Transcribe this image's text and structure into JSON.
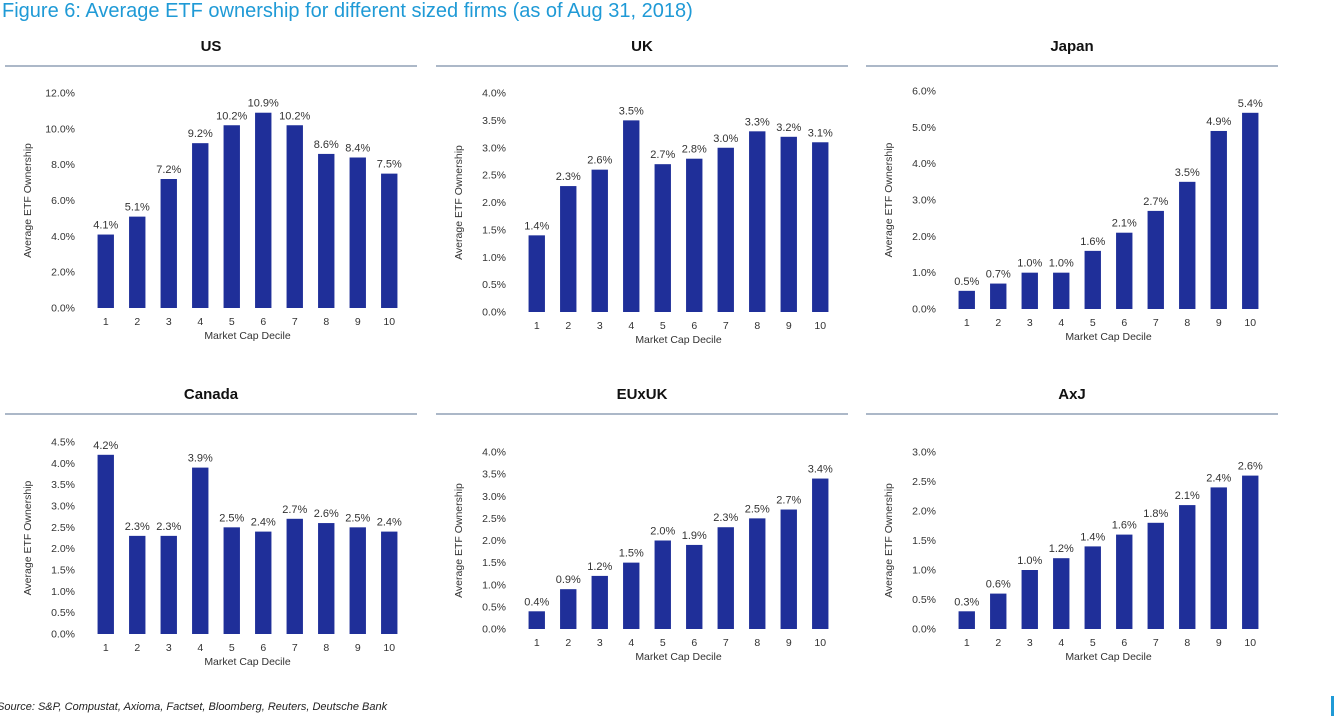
{
  "figure_title": "Figure 6: Average ETF ownership for different sized firms (as of Aug 31, 2018)",
  "source": "Source: S&P, Compustat, Axioma, Factset, Bloomberg, Reuters, Deutsche Bank",
  "colors": {
    "bar": "#1f2f99",
    "rule": "#7a8ea6",
    "title": "#1f9ad6"
  },
  "chart_data": [
    {
      "type": "bar",
      "title": "US",
      "xlabel": "Market Cap Decile",
      "ylabel": "Average ETF Ownership",
      "categories": [
        "1",
        "2",
        "3",
        "4",
        "5",
        "6",
        "7",
        "8",
        "9",
        "10"
      ],
      "values": [
        4.1,
        5.1,
        7.2,
        9.2,
        10.2,
        10.9,
        10.2,
        8.6,
        8.4,
        7.5
      ],
      "value_labels": [
        "4.1%",
        "5.1%",
        "7.2%",
        "9.2%",
        "10.2%",
        "10.9%",
        "10.2%",
        "8.6%",
        "8.4%",
        "7.5%"
      ],
      "yticks": [
        0,
        2,
        4,
        6,
        8,
        10,
        12
      ],
      "ytick_labels": [
        "0.0%",
        "2.0%",
        "4.0%",
        "6.0%",
        "8.0%",
        "10.0%",
        "12.0%"
      ],
      "ylim": [
        0,
        12
      ]
    },
    {
      "type": "bar",
      "title": "UK",
      "xlabel": "Market Cap Decile",
      "ylabel": "Average ETF Ownership",
      "categories": [
        "1",
        "2",
        "3",
        "4",
        "5",
        "6",
        "7",
        "8",
        "9",
        "10"
      ],
      "values": [
        1.4,
        2.3,
        2.6,
        3.5,
        2.7,
        2.8,
        3.0,
        3.3,
        3.2,
        3.1
      ],
      "value_labels": [
        "1.4%",
        "2.3%",
        "2.6%",
        "3.5%",
        "2.7%",
        "2.8%",
        "3.0%",
        "3.3%",
        "3.2%",
        "3.1%"
      ],
      "yticks": [
        0,
        0.5,
        1,
        1.5,
        2,
        2.5,
        3,
        3.5,
        4
      ],
      "ytick_labels": [
        "0.0%",
        "0.5%",
        "1.0%",
        "1.5%",
        "2.0%",
        "2.5%",
        "3.0%",
        "3.5%",
        "4.0%"
      ],
      "ylim": [
        0,
        4
      ]
    },
    {
      "type": "bar",
      "title": "Japan",
      "xlabel": "Market Cap Decile",
      "ylabel": "Average ETF Ownership",
      "categories": [
        "1",
        "2",
        "3",
        "4",
        "5",
        "6",
        "7",
        "8",
        "9",
        "10"
      ],
      "values": [
        0.5,
        0.7,
        1.0,
        1.0,
        1.6,
        2.1,
        2.7,
        3.5,
        4.9,
        5.4
      ],
      "value_labels": [
        "0.5%",
        "0.7%",
        "1.0%",
        "1.0%",
        "1.6%",
        "2.1%",
        "2.7%",
        "3.5%",
        "4.9%",
        "5.4%"
      ],
      "yticks": [
        0,
        1,
        2,
        3,
        4,
        5,
        6
      ],
      "ytick_labels": [
        "0.0%",
        "1.0%",
        "2.0%",
        "3.0%",
        "4.0%",
        "5.0%",
        "6.0%"
      ],
      "ylim": [
        0,
        6
      ]
    },
    {
      "type": "bar",
      "title": "Canada",
      "xlabel": "Market Cap Decile",
      "ylabel": "Average ETF Ownership",
      "categories": [
        "1",
        "2",
        "3",
        "4",
        "5",
        "6",
        "7",
        "8",
        "9",
        "10"
      ],
      "values": [
        4.2,
        2.3,
        2.3,
        3.9,
        2.5,
        2.4,
        2.7,
        2.6,
        2.5,
        2.4
      ],
      "value_labels": [
        "4.2%",
        "2.3%",
        "2.3%",
        "3.9%",
        "2.5%",
        "2.4%",
        "2.7%",
        "2.6%",
        "2.5%",
        "2.4%"
      ],
      "yticks": [
        0,
        0.5,
        1,
        1.5,
        2,
        2.5,
        3,
        3.5,
        4,
        4.5
      ],
      "ytick_labels": [
        "0.0%",
        "0.5%",
        "1.0%",
        "1.5%",
        "2.0%",
        "2.5%",
        "3.0%",
        "3.5%",
        "4.0%",
        "4.5%"
      ],
      "ylim": [
        0,
        4.5
      ]
    },
    {
      "type": "bar",
      "title": "EUxUK",
      "xlabel": "Market Cap Decile",
      "ylabel": "Average ETF Ownership",
      "categories": [
        "1",
        "2",
        "3",
        "4",
        "5",
        "6",
        "7",
        "8",
        "9",
        "10"
      ],
      "values": [
        0.4,
        0.9,
        1.2,
        1.5,
        2.0,
        1.9,
        2.3,
        2.5,
        2.7,
        3.4
      ],
      "value_labels": [
        "0.4%",
        "0.9%",
        "1.2%",
        "1.5%",
        "2.0%",
        "1.9%",
        "2.3%",
        "2.5%",
        "2.7%",
        "3.4%"
      ],
      "yticks": [
        0,
        0.5,
        1,
        1.5,
        2,
        2.5,
        3,
        3.5,
        4
      ],
      "ytick_labels": [
        "0.0%",
        "0.5%",
        "1.0%",
        "1.5%",
        "2.0%",
        "2.5%",
        "3.0%",
        "3.5%",
        "4.0%"
      ],
      "ylim": [
        0,
        4
      ]
    },
    {
      "type": "bar",
      "title": "AxJ",
      "xlabel": "Market Cap Decile",
      "ylabel": "Average ETF Ownership",
      "categories": [
        "1",
        "2",
        "3",
        "4",
        "5",
        "6",
        "7",
        "8",
        "9",
        "10"
      ],
      "values": [
        0.3,
        0.6,
        1.0,
        1.2,
        1.4,
        1.6,
        1.8,
        2.1,
        2.4,
        2.6
      ],
      "value_labels": [
        "0.3%",
        "0.6%",
        "1.0%",
        "1.2%",
        "1.4%",
        "1.6%",
        "1.8%",
        "2.1%",
        "2.4%",
        "2.6%"
      ],
      "yticks": [
        0,
        0.5,
        1,
        1.5,
        2,
        2.5,
        3
      ],
      "ytick_labels": [
        "0.0%",
        "0.5%",
        "1.0%",
        "1.5%",
        "2.0%",
        "2.5%",
        "3.0%"
      ],
      "ylim": [
        0,
        3
      ]
    }
  ]
}
